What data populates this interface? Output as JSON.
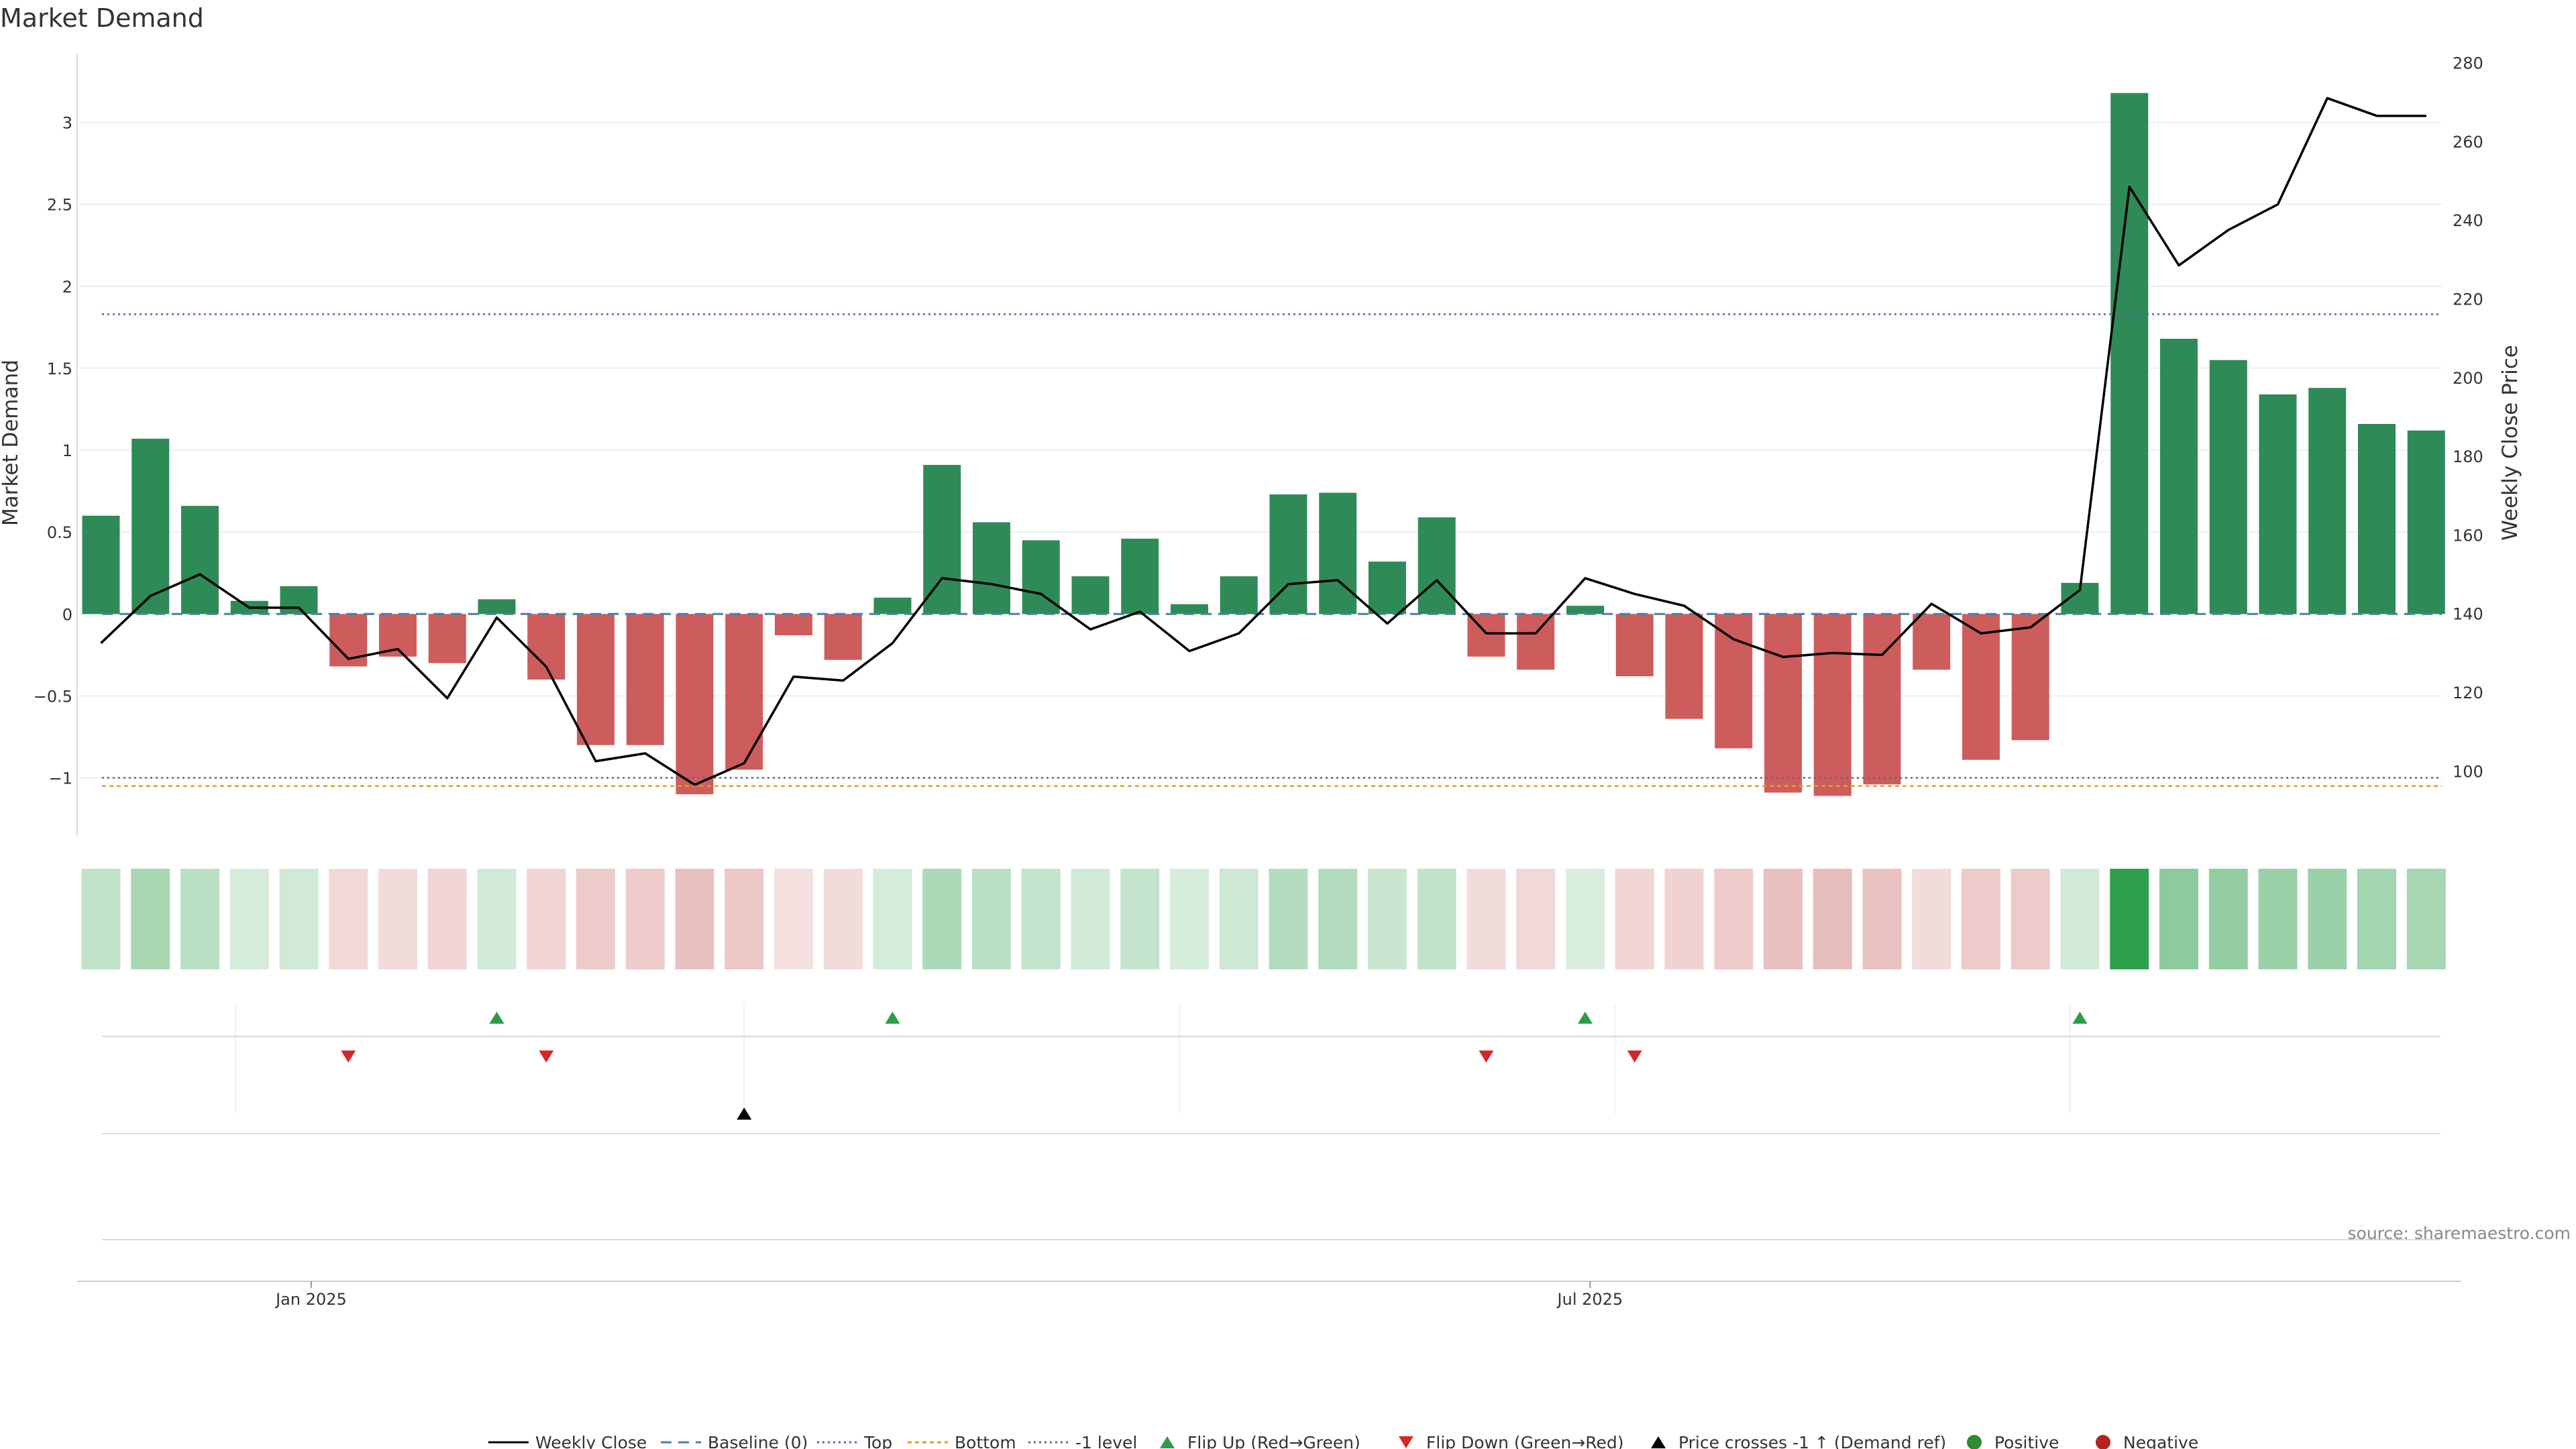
{
  "chart_data": {
    "type": "bar",
    "title": "Market Demand",
    "ylabel": "Market Demand",
    "y2label": "Weekly Close Price",
    "ylim": [
      -1.35,
      3.42
    ],
    "y2lim": [
      83.7,
      282.3
    ],
    "yticks": [
      -1,
      -0.5,
      0,
      0.5,
      1,
      1.5,
      2,
      2.5,
      3
    ],
    "ytick_labels": [
      "−1",
      "−0.5",
      "0",
      "0.5",
      "1",
      "1.5",
      "2",
      "2.5",
      "3"
    ],
    "y2ticks": [
      100,
      120,
      140,
      160,
      180,
      200,
      220,
      240,
      260,
      280
    ],
    "y2tick_labels": [
      "100",
      "120",
      "140",
      "160",
      "180",
      "200",
      "220",
      "240",
      "260",
      "280"
    ],
    "xticks": [
      {
        "label": "Jan 2025",
        "week": 4.25
      },
      {
        "label": "Jul 2025",
        "week": 30.1
      }
    ],
    "gridlines": [
      2.72,
      13.0,
      21.8,
      30.6,
      39.8
    ],
    "top_level": 1.83,
    "bottom_level": -1.05,
    "minus_one_level": -1.0,
    "baseline": 0,
    "demand": [
      0.6,
      1.07,
      0.66,
      0.08,
      0.17,
      -0.32,
      -0.26,
      -0.3,
      0.09,
      -0.4,
      -0.8,
      -0.8,
      -1.1,
      -0.95,
      -0.13,
      -0.28,
      0.1,
      0.91,
      0.56,
      0.45,
      0.23,
      0.46,
      0.06,
      0.23,
      0.73,
      0.74,
      0.32,
      0.59,
      -0.26,
      -0.34,
      0.05,
      -0.38,
      -0.64,
      -0.82,
      -1.09,
      -1.11,
      -1.04,
      -0.34,
      -0.89,
      -0.77,
      0.19,
      3.18,
      1.68,
      1.55,
      1.34,
      1.38,
      1.16,
      1.12
    ],
    "weekly_close": [
      132.5,
      144.5,
      150.0,
      141.5,
      141.5,
      128.5,
      131.0,
      118.5,
      139.0,
      126.5,
      102.5,
      104.5,
      96.5,
      102.0,
      124.0,
      123.0,
      132.5,
      149.0,
      147.5,
      145.0,
      136.0,
      140.5,
      130.5,
      135.0,
      147.5,
      148.5,
      137.5,
      148.5,
      135.0,
      135.0,
      149.0,
      145.0,
      142.0,
      133.5,
      129.0,
      130.0,
      129.5,
      142.5,
      135.0,
      136.5,
      146.0,
      248.5,
      228.5,
      237.5,
      244.0,
      271.0,
      266.5,
      266.5
    ],
    "tile_intensity": [
      0.3,
      0.42,
      0.33,
      0.2,
      0.22,
      0.22,
      0.2,
      0.24,
      0.22,
      0.24,
      0.3,
      0.3,
      0.36,
      0.32,
      0.18,
      0.2,
      0.2,
      0.4,
      0.33,
      0.28,
      0.22,
      0.28,
      0.2,
      0.24,
      0.36,
      0.37,
      0.26,
      0.3,
      0.2,
      0.22,
      0.18,
      0.24,
      0.26,
      0.3,
      0.36,
      0.37,
      0.35,
      0.2,
      0.3,
      0.3,
      0.22,
      1.0,
      0.55,
      0.52,
      0.48,
      0.48,
      0.44,
      0.43
    ],
    "flip_up_weeks": [
      8,
      16,
      30,
      40
    ],
    "flip_down_weeks": [
      5,
      9,
      28,
      31
    ],
    "price_cross_weeks": [
      13
    ],
    "colors": {
      "positive": "#2e8b57",
      "negative": "#cd5c5c",
      "close_line": "#000000",
      "baseline": "#4a7fa8",
      "top": "#5b5fb0",
      "bottom": "#e59a2a",
      "minus_one": "#666677",
      "flip_up": "#2a9d46",
      "flip_down": "#d62728",
      "cross": "#000000",
      "dot_positive": "#2e8b2e",
      "dot_negative": "#b22222"
    },
    "legend": [
      {
        "label": "Weekly Close",
        "kind": "line-solid"
      },
      {
        "label": "Baseline (0)",
        "kind": "line-dash"
      },
      {
        "label": "Top",
        "kind": "line-dot-top"
      },
      {
        "label": "Bottom",
        "kind": "line-dot-bottom"
      },
      {
        "label": "-1 level",
        "kind": "line-dot-minus"
      },
      {
        "label": "Flip Up (Red→Green)",
        "kind": "tri-up"
      },
      {
        "label": "Flip Down (Green→Red)",
        "kind": "tri-down"
      },
      {
        "label": "Price crosses -1 ↑ (Demand ref)",
        "kind": "tri-cross"
      },
      {
        "label": "Positive",
        "kind": "dot-pos"
      },
      {
        "label": "Negative",
        "kind": "dot-neg"
      }
    ]
  },
  "source_text": "source: sharemaestro.com"
}
